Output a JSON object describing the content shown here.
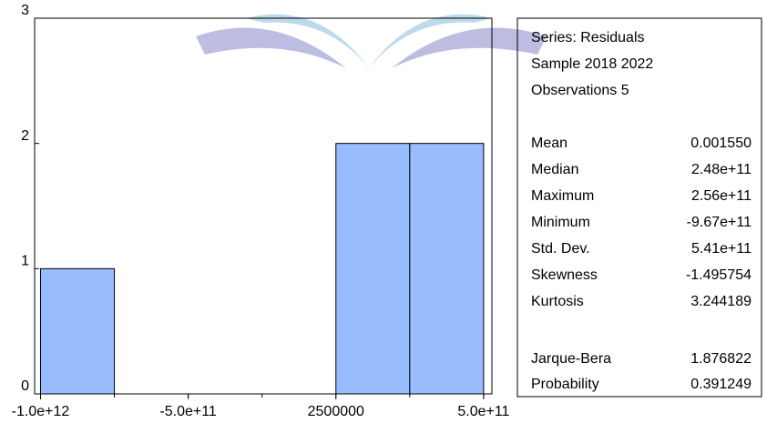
{
  "chart_data": {
    "type": "histogram",
    "bins": [
      -1000000000000,
      -750000000000,
      -500000000000,
      -250000000000,
      0,
      250000000000,
      500000000000
    ],
    "counts": [
      1,
      0,
      0,
      0,
      2,
      2
    ],
    "color": "#99bbff",
    "xlim": [
      -1020000000000,
      528000000000
    ],
    "xticks": [
      {
        "value": -1000000000000,
        "label": "-1.0e+12"
      },
      {
        "value": -500000000000,
        "label": "-5.0e+11"
      },
      2500000,
      {
        "value": 500000000000,
        "label": "5.0e+11"
      }
    ],
    "ylim": [
      0,
      3
    ],
    "yticks": [
      0,
      1,
      2,
      3
    ],
    "stats_box": {
      "header": [
        "Series: Residuals",
        "Sample 2018 2022",
        "Observations 5"
      ],
      "rows": [
        [
          "Mean",
          "0.001550"
        ],
        [
          "Median",
          "2.48e+11"
        ],
        [
          "Maximum",
          "2.56e+11"
        ],
        [
          "Minimum",
          "-9.67e+11"
        ],
        [
          "Std. Dev.",
          "5.41e+11"
        ],
        [
          "Skewness",
          "-1.495754"
        ],
        [
          "Kurtosis",
          "3.244189"
        ]
      ],
      "test_rows": [
        [
          "Jarque-Bera",
          "1.876822"
        ],
        [
          "Probability",
          "0.391249"
        ]
      ]
    }
  }
}
